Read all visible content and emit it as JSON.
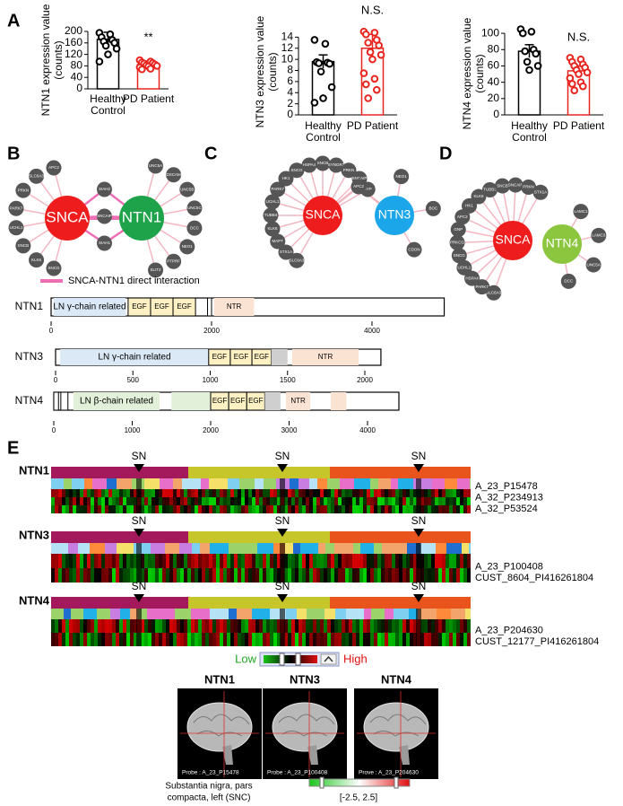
{
  "panels": [
    "A",
    "B",
    "C",
    "D",
    "E"
  ],
  "chart_data": [
    {
      "type": "bar",
      "ylabel": [
        "NTN1 expression value",
        "(counts)"
      ],
      "categories": [
        "Healthy Control",
        "PD Patient"
      ],
      "values": [
        172,
        85
      ],
      "errors": [
        25,
        12
      ],
      "colors": [
        "#000000",
        "#e8251f"
      ],
      "points": [
        [
          195,
          190,
          180,
          170,
          165,
          160,
          150,
          140,
          120,
          95
        ],
        [
          100,
          95,
          92,
          90,
          88,
          85,
          82,
          80,
          78,
          75,
          70,
          68
        ]
      ],
      "annotation": "**",
      "ylim": [
        0,
        200
      ],
      "yticks": [
        0,
        40,
        80,
        120,
        160,
        200
      ]
    },
    {
      "type": "bar",
      "ylabel": [
        "NTN3 expression value",
        "(counts)"
      ],
      "categories": [
        "Healthy Control",
        "PD Patient"
      ],
      "values": [
        9.6,
        12
      ],
      "errors": [
        1.2,
        2.5
      ],
      "colors": [
        "#000000",
        "#e8251f"
      ],
      "points": [
        [
          13.5,
          12.8,
          9.5,
          9.4,
          9.3,
          9.2,
          7.8,
          5,
          3,
          2.2
        ],
        [
          15,
          14.8,
          14.5,
          13.5,
          13,
          12.5,
          11.3,
          10.8,
          10,
          7.5,
          6.5,
          5.5,
          4.5,
          3
        ]
      ],
      "annotation": "N.S.",
      "ylim": [
        0,
        16
      ],
      "yticks": [
        0,
        2,
        4,
        6,
        8,
        10,
        12,
        14
      ]
    },
    {
      "type": "bar",
      "ylabel": [
        "NTN4 expression value",
        "(counts)"
      ],
      "categories": [
        "Healthy Control",
        "PD Patient"
      ],
      "values": [
        78,
        54
      ],
      "errors": [
        8,
        6
      ],
      "colors": [
        "#000000",
        "#e8251f"
      ],
      "points": [
        [
          105,
          102,
          100,
          80,
          78,
          75,
          65,
          60,
          55
        ],
        [
          70,
          68,
          65,
          62,
          60,
          58,
          55,
          52,
          50,
          45,
          40,
          38,
          35,
          30
        ]
      ],
      "annotation": "N.S.",
      "ylim": [
        0,
        110
      ],
      "yticks": [
        0,
        20,
        40,
        60,
        80,
        100
      ]
    }
  ],
  "networks": [
    {
      "hubs": [
        {
          "label": "SNCA",
          "color": "#ee1c1c"
        },
        {
          "label": "NTN1",
          "color": "#1fa34a"
        }
      ],
      "nodes": [
        {
          "label": "SNCG",
          "links": [
            0
          ]
        },
        {
          "label": "KLK6",
          "links": [
            0
          ]
        },
        {
          "label": "SNCB",
          "links": [
            0
          ]
        },
        {
          "label": "UCHL1",
          "links": [
            0
          ]
        },
        {
          "label": "PARK7",
          "links": [
            0
          ]
        },
        {
          "label": "PRKN",
          "links": [
            0
          ]
        },
        {
          "label": "SLC6A3",
          "links": [
            0
          ]
        },
        {
          "label": "APC2",
          "links": [
            0
          ]
        },
        {
          "label": "SIAH2",
          "links": [
            0,
            1
          ]
        },
        {
          "label": "SNCAIP",
          "links": [
            0,
            1
          ]
        },
        {
          "label": "SIAH1",
          "links": [
            0,
            1
          ]
        },
        {
          "label": "UNC5A",
          "links": [
            1
          ]
        },
        {
          "label": "DSCAM",
          "links": [
            1
          ]
        },
        {
          "label": "UNC5B",
          "links": [
            1
          ]
        },
        {
          "label": "UNC5C",
          "links": [
            1
          ]
        },
        {
          "label": "DCC",
          "links": [
            1
          ]
        },
        {
          "label": "NEO1",
          "links": [
            1
          ]
        },
        {
          "label": "PTPRF",
          "links": [
            1
          ]
        },
        {
          "label": "SLIT2",
          "links": [
            1
          ]
        }
      ],
      "legend": "SNCA-NTN1 direct interaction"
    },
    {
      "hubs": [
        {
          "label": "SNCA",
          "color": "#ee1c1c"
        },
        {
          "label": "NTN3",
          "color": "#1aa6e8"
        }
      ],
      "nodes": [
        {
          "label": "SLC6A3",
          "links": [
            0
          ]
        },
        {
          "label": "STX1A",
          "links": [
            0
          ]
        },
        {
          "label": "MAPT",
          "links": [
            0
          ]
        },
        {
          "label": "KLK6",
          "links": [
            0
          ]
        },
        {
          "label": "TUBB4",
          "links": [
            0
          ]
        },
        {
          "label": "UCHL1",
          "links": [
            0
          ]
        },
        {
          "label": "PARK7",
          "links": [
            0
          ]
        },
        {
          "label": "HK1",
          "links": [
            0
          ]
        },
        {
          "label": "SNCG",
          "links": [
            0
          ]
        },
        {
          "label": "HSPA4",
          "links": [
            0
          ]
        },
        {
          "label": "SNCB",
          "links": [
            0
          ]
        },
        {
          "label": "SYNGR3",
          "links": [
            0
          ]
        },
        {
          "label": "PRKN",
          "links": [
            0
          ]
        },
        {
          "label": "SNCAIP",
          "links": [
            0
          ]
        },
        {
          "label": "SYP",
          "links": [
            0
          ]
        },
        {
          "label": "APC2",
          "links": [
            0,
            1
          ]
        },
        {
          "label": "NEO1",
          "links": [
            1
          ]
        },
        {
          "label": "BOC",
          "links": [
            1
          ]
        },
        {
          "label": "CDON",
          "links": [
            1
          ]
        }
      ]
    },
    {
      "hubs": [
        {
          "label": "SNCA",
          "color": "#ee1c1c"
        },
        {
          "label": "NTN4",
          "color": "#8cc63f"
        }
      ],
      "nodes": [
        {
          "label": "SLC6A3",
          "links": [
            0
          ]
        },
        {
          "label": "PARK7",
          "links": [
            0
          ]
        },
        {
          "label": "HSPA4",
          "links": [
            0
          ]
        },
        {
          "label": "UCHL1",
          "links": [
            0
          ]
        },
        {
          "label": "SNCG",
          "links": [
            0
          ]
        },
        {
          "label": "PRKCG",
          "links": [
            0
          ]
        },
        {
          "label": "GNP",
          "links": [
            0
          ]
        },
        {
          "label": "APC2",
          "links": [
            0
          ]
        },
        {
          "label": "HK1",
          "links": [
            0
          ]
        },
        {
          "label": "KLK6",
          "links": [
            0
          ]
        },
        {
          "label": "TUBB3",
          "links": [
            0
          ]
        },
        {
          "label": "SNCB",
          "links": [
            0
          ]
        },
        {
          "label": "SNCAIP",
          "links": [
            0
          ]
        },
        {
          "label": "PRKN",
          "links": [
            0
          ]
        },
        {
          "label": "STX1A",
          "links": [
            0
          ]
        },
        {
          "label": "LAMC1",
          "links": [
            1
          ]
        },
        {
          "label": "LAMC3",
          "links": [
            1
          ]
        },
        {
          "label": "UNC5A",
          "links": [
            1
          ]
        },
        {
          "label": "DCC",
          "links": [
            1
          ]
        }
      ]
    }
  ],
  "domains": [
    {
      "name": "NTN1",
      "length": 4900,
      "ticks": [
        0,
        2000,
        4000
      ],
      "segments": [
        {
          "label": "LN γ-chain related",
          "start": 30,
          "end": 930,
          "color": "#dbe8f5"
        },
        {
          "label": "EGF",
          "start": 960,
          "end": 1240,
          "color": "#fdf1c4"
        },
        {
          "label": "EGF",
          "start": 1240,
          "end": 1520,
          "color": "#fdf1c4"
        },
        {
          "label": "EGF",
          "start": 1520,
          "end": 1800,
          "color": "#fdf1c4"
        },
        {
          "start": 1950,
          "end": 2000,
          "color": "#ffffff"
        },
        {
          "label": "NTR",
          "start": 2030,
          "end": 2530,
          "color": "#fbe3d3"
        }
      ]
    },
    {
      "name": "NTN3",
      "length": 2104,
      "ticks": [
        0,
        500,
        1000,
        1500,
        2000
      ],
      "segments": [
        {
          "label": "LN γ-chain related",
          "start": 30,
          "end": 990,
          "color": "#dbe8f5"
        },
        {
          "label": "EGF",
          "start": 990,
          "end": 1130,
          "color": "#fdf1c4"
        },
        {
          "label": "EGF",
          "start": 1130,
          "end": 1270,
          "color": "#fdf1c4"
        },
        {
          "label": "EGF",
          "start": 1270,
          "end": 1395,
          "color": "#fdf1c4"
        },
        {
          "start": 1395,
          "end": 1500,
          "color": "#cfcfcf"
        },
        {
          "label": "NTR",
          "start": 1530,
          "end": 1960,
          "color": "#fbe3d3"
        }
      ]
    },
    {
      "name": "NTN4",
      "length": 4400,
      "ticks": [
        0,
        1000,
        2000,
        3000,
        4000
      ],
      "segments": [
        {
          "start": 0,
          "end": 60,
          "color": "#ffffff"
        },
        {
          "start": 90,
          "end": 180,
          "color": "#ffffff"
        },
        {
          "label": "LN β-chain related",
          "start": 250,
          "end": 1350,
          "color": "#e2efd9"
        },
        {
          "start": 1500,
          "end": 2000,
          "color": "#e2efd9"
        },
        {
          "label": "EGF",
          "start": 2000,
          "end": 2230,
          "color": "#fdf1c4"
        },
        {
          "label": "EGF",
          "start": 2230,
          "end": 2460,
          "color": "#fdf1c4"
        },
        {
          "label": "EGF",
          "start": 2460,
          "end": 2690,
          "color": "#fdf1c4"
        },
        {
          "start": 2690,
          "end": 2890,
          "color": "#cfcfcf"
        },
        {
          "label": "NTR",
          "start": 2960,
          "end": 3270,
          "color": "#fbe3d3"
        },
        {
          "start": 3530,
          "end": 3730,
          "color": "#fbe3d3"
        }
      ]
    }
  ],
  "expression": [
    {
      "gene": "NTN1",
      "regions": [
        "SN",
        "SN",
        "SN"
      ],
      "probes": [
        "A_23_P15478",
        "A_32_P234913",
        "A_32_P53524"
      ]
    },
    {
      "gene": "NTN3",
      "regions": [
        "SN",
        "SN",
        "SN"
      ],
      "probes": [
        "A_23_P100408",
        "CUST_8604_PI416261804"
      ]
    },
    {
      "gene": "NTN4",
      "regions": [
        "SN",
        "SN",
        "SN"
      ],
      "probes": [
        "A_23_P204630",
        "CUST_12177_PI416261804"
      ]
    }
  ],
  "expression_legend": {
    "low": "Low",
    "high": "High"
  },
  "brain": {
    "panels": [
      {
        "title": "NTN1",
        "probe": "Probe : A_23_P15478"
      },
      {
        "title": "NTN3",
        "probe": "Probe : A_23_P100408"
      },
      {
        "title": "NTN4",
        "probe": "Prove : A_23_P204630"
      }
    ],
    "region": [
      "Substantia nigra, pars",
      "compacta, left (SNC)"
    ],
    "range": "[-2.5, 2.5]"
  }
}
